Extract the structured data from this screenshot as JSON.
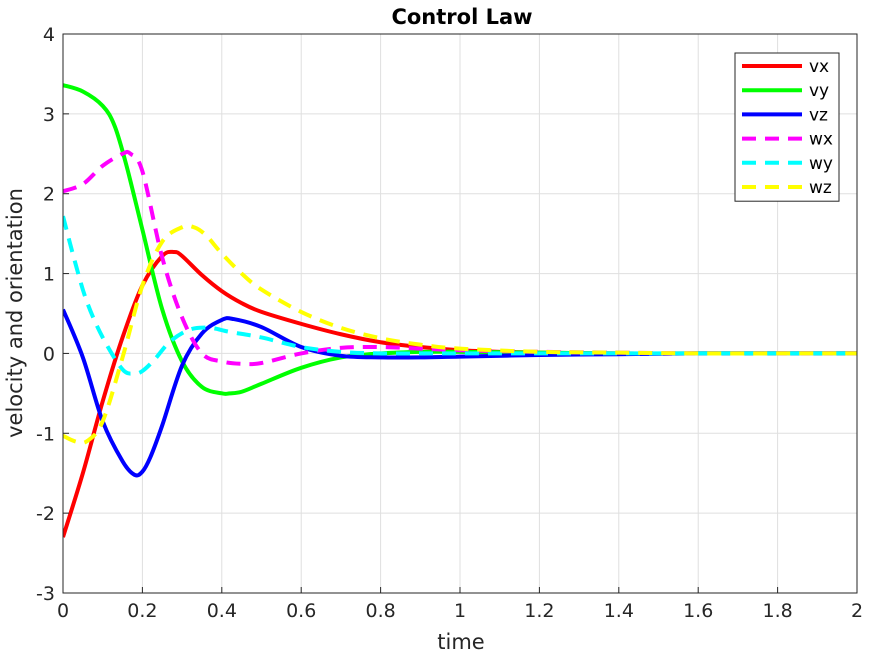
{
  "chart_data": {
    "type": "line",
    "title": "Control Law",
    "xlabel": "time",
    "ylabel": "velocity and orientation",
    "xlim": [
      0,
      2
    ],
    "ylim": [
      -3,
      4
    ],
    "xticks": [
      0,
      0.2,
      0.4,
      0.6,
      0.8,
      1,
      1.2,
      1.4,
      1.6,
      1.8,
      2
    ],
    "xtick_labels": [
      "0",
      "0.2",
      "0.4",
      "0.6",
      "0.8",
      "1",
      "1.2",
      "1.4",
      "1.6",
      "1.8",
      "2"
    ],
    "yticks": [
      -3,
      -2,
      -1,
      0,
      1,
      2,
      3,
      4
    ],
    "ytick_labels": [
      "-3",
      "-2",
      "-1",
      "0",
      "1",
      "2",
      "3",
      "4"
    ],
    "grid": true,
    "legend_position": "top-right",
    "series": [
      {
        "name": "vx",
        "color": "#ff0000",
        "style": "solid",
        "x": [
          0,
          0.05,
          0.1,
          0.15,
          0.2,
          0.25,
          0.28,
          0.3,
          0.35,
          0.4,
          0.45,
          0.5,
          0.6,
          0.7,
          0.8,
          0.9,
          1.0,
          1.1,
          1.2,
          1.4,
          1.6,
          1.8,
          2.0
        ],
        "y": [
          -2.3,
          -1.5,
          -0.6,
          0.2,
          0.85,
          1.22,
          1.27,
          1.22,
          0.98,
          0.78,
          0.63,
          0.52,
          0.37,
          0.24,
          0.14,
          0.08,
          0.04,
          0.02,
          0.01,
          0,
          0,
          0,
          0
        ]
      },
      {
        "name": "vy",
        "color": "#00ff00",
        "style": "solid",
        "x": [
          0,
          0.05,
          0.1,
          0.13,
          0.16,
          0.2,
          0.25,
          0.3,
          0.35,
          0.4,
          0.42,
          0.45,
          0.5,
          0.6,
          0.7,
          0.8,
          0.9,
          1.0,
          1.2,
          1.4,
          1.6,
          1.8,
          2.0
        ],
        "y": [
          3.36,
          3.28,
          3.1,
          2.85,
          2.35,
          1.55,
          0.55,
          -0.1,
          -0.42,
          -0.5,
          -0.5,
          -0.48,
          -0.38,
          -0.18,
          -0.05,
          0,
          0.02,
          0.02,
          0.01,
          0,
          0,
          0,
          0
        ]
      },
      {
        "name": "vz",
        "color": "#0000ff",
        "style": "solid",
        "x": [
          0,
          0.05,
          0.1,
          0.15,
          0.18,
          0.2,
          0.22,
          0.25,
          0.3,
          0.35,
          0.4,
          0.43,
          0.5,
          0.6,
          0.7,
          0.8,
          0.9,
          1.0,
          1.2,
          1.4,
          1.6,
          1.8,
          2.0
        ],
        "y": [
          0.55,
          -0.05,
          -0.85,
          -1.35,
          -1.52,
          -1.48,
          -1.3,
          -0.9,
          -0.15,
          0.25,
          0.42,
          0.43,
          0.33,
          0.08,
          -0.03,
          -0.05,
          -0.05,
          -0.04,
          -0.02,
          -0.01,
          0,
          0,
          0
        ]
      },
      {
        "name": "wx",
        "color": "#ff00ff",
        "style": "dashed",
        "x": [
          0,
          0.05,
          0.1,
          0.15,
          0.17,
          0.2,
          0.25,
          0.3,
          0.35,
          0.4,
          0.45,
          0.5,
          0.6,
          0.7,
          0.8,
          0.9,
          1.0,
          1.2,
          1.4,
          1.6,
          1.8,
          2.0
        ],
        "y": [
          2.03,
          2.12,
          2.35,
          2.5,
          2.5,
          2.28,
          1.2,
          0.45,
          0.0,
          -0.1,
          -0.13,
          -0.12,
          0.0,
          0.07,
          0.08,
          0.06,
          0.04,
          0.02,
          0.01,
          0,
          0,
          0
        ]
      },
      {
        "name": "wy",
        "color": "#00ffff",
        "style": "dashed",
        "x": [
          0,
          0.03,
          0.06,
          0.1,
          0.15,
          0.18,
          0.2,
          0.23,
          0.27,
          0.32,
          0.37,
          0.42,
          0.5,
          0.6,
          0.7,
          0.8,
          0.9,
          1.0,
          1.2,
          1.4,
          1.6,
          1.8,
          2.0
        ],
        "y": [
          1.72,
          1.15,
          0.65,
          0.2,
          -0.2,
          -0.25,
          -0.22,
          -0.08,
          0.15,
          0.3,
          0.32,
          0.27,
          0.2,
          0.08,
          0.02,
          0.0,
          0.0,
          0.0,
          0.0,
          0,
          0,
          0,
          0
        ]
      },
      {
        "name": "wz",
        "color": "#ffff00",
        "style": "dashed",
        "x": [
          0,
          0.03,
          0.06,
          0.1,
          0.15,
          0.2,
          0.25,
          0.3,
          0.33,
          0.36,
          0.4,
          0.45,
          0.5,
          0.6,
          0.7,
          0.8,
          0.9,
          1.0,
          1.2,
          1.4,
          1.6,
          1.8,
          2.0
        ],
        "y": [
          -1.03,
          -1.1,
          -1.1,
          -0.85,
          -0.05,
          0.85,
          1.4,
          1.58,
          1.58,
          1.48,
          1.25,
          1.0,
          0.8,
          0.52,
          0.32,
          0.19,
          0.11,
          0.06,
          0.02,
          0.01,
          0,
          0,
          0
        ]
      }
    ]
  }
}
